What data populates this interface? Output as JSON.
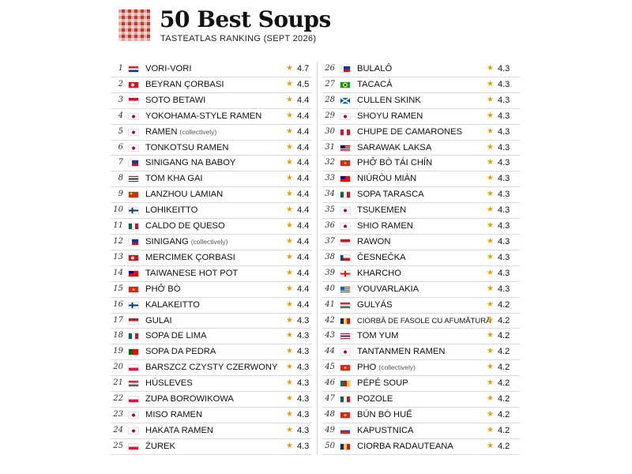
{
  "header": {
    "title": "50 Best Soups",
    "subtitle": "TASTEATLAS RANKING (SEPT 2026)"
  },
  "colors": {
    "star": "#e0a100",
    "logo": "#c0392b"
  },
  "left_column": [
    {
      "rank": "1",
      "name": "VORI-VORI",
      "note": "",
      "score": "4.7",
      "flag": "paraguay"
    },
    {
      "rank": "2",
      "name": "BEYRAN ÇORBASI",
      "note": "",
      "score": "4.5",
      "flag": "turkey"
    },
    {
      "rank": "3",
      "name": "SOTO BETAWI",
      "note": "",
      "score": "4.4",
      "flag": "indonesia"
    },
    {
      "rank": "4",
      "name": "YOKOHAMA-STYLE RAMEN",
      "note": "",
      "score": "4.4",
      "flag": "japan"
    },
    {
      "rank": "5",
      "name": "RAMEN",
      "note": "(collectively)",
      "score": "4.4",
      "flag": "japan"
    },
    {
      "rank": "6",
      "name": "TONKOTSU RAMEN",
      "note": "",
      "score": "4.4",
      "flag": "japan"
    },
    {
      "rank": "7",
      "name": "SINIGANG NA BABOY",
      "note": "",
      "score": "4.4",
      "flag": "philippines"
    },
    {
      "rank": "8",
      "name": "TOM KHA GAI",
      "note": "",
      "score": "4.4",
      "flag": "thailand"
    },
    {
      "rank": "9",
      "name": "LANZHOU LAMIAN",
      "note": "",
      "score": "4.4",
      "flag": "china"
    },
    {
      "rank": "10",
      "name": "LOHIKEITTO",
      "note": "",
      "score": "4.4",
      "flag": "finland"
    },
    {
      "rank": "11",
      "name": "CALDO DE QUESO",
      "note": "",
      "score": "4.4",
      "flag": "mexico"
    },
    {
      "rank": "12",
      "name": "SINIGANG",
      "note": "(collectively)",
      "score": "4.4",
      "flag": "philippines"
    },
    {
      "rank": "13",
      "name": "MERCIMEK ÇORBASI",
      "note": "",
      "score": "4.4",
      "flag": "turkey"
    },
    {
      "rank": "14",
      "name": "TAIWANESE HOT POT",
      "note": "",
      "score": "4.4",
      "flag": "taiwan"
    },
    {
      "rank": "15",
      "name": "PHỞ BÒ",
      "note": "",
      "score": "4.4",
      "flag": "vietnam"
    },
    {
      "rank": "16",
      "name": "KALAKEITTO",
      "note": "",
      "score": "4.4",
      "flag": "finland"
    },
    {
      "rank": "17",
      "name": "GULAI",
      "note": "",
      "score": "4.3",
      "flag": "indonesia"
    },
    {
      "rank": "18",
      "name": "SOPA DE LIMA",
      "note": "",
      "score": "4.3",
      "flag": "mexico"
    },
    {
      "rank": "19",
      "name": "SOPA DA PEDRA",
      "note": "",
      "score": "4.3",
      "flag": "portugal"
    },
    {
      "rank": "20",
      "name": "BARSZCZ CZYSTY CZERWONY",
      "note": "",
      "score": "4.3",
      "flag": "poland"
    },
    {
      "rank": "21",
      "name": "HÚSLEVES",
      "note": "",
      "score": "4.3",
      "flag": "hungary"
    },
    {
      "rank": "22",
      "name": "ZUPA BOROWIKOWA",
      "note": "",
      "score": "4.3",
      "flag": "poland"
    },
    {
      "rank": "23",
      "name": "MISO RAMEN",
      "note": "",
      "score": "4.3",
      "flag": "japan"
    },
    {
      "rank": "24",
      "name": "HAKATA RAMEN",
      "note": "",
      "score": "4.3",
      "flag": "japan"
    },
    {
      "rank": "25",
      "name": "ŻUREK",
      "note": "",
      "score": "4.3",
      "flag": "poland"
    }
  ],
  "right_column": [
    {
      "rank": "26",
      "name": "BULALÔ",
      "note": "",
      "score": "4.3",
      "flag": "philippines"
    },
    {
      "rank": "27",
      "name": "TACACÁ",
      "note": "",
      "score": "4.3",
      "flag": "brazil"
    },
    {
      "rank": "28",
      "name": "CULLEN SKINK",
      "note": "",
      "score": "4.3",
      "flag": "scotland"
    },
    {
      "rank": "29",
      "name": "SHOYU RAMEN",
      "note": "",
      "score": "4.3",
      "flag": "japan"
    },
    {
      "rank": "30",
      "name": "CHUPE DE CAMARONES",
      "note": "",
      "score": "4.3",
      "flag": "peru"
    },
    {
      "rank": "31",
      "name": "SARAWAK LAKSA",
      "note": "",
      "score": "4.3",
      "flag": "malaysia"
    },
    {
      "rank": "32",
      "name": "PHỞ BÒ TÁI CHÍN",
      "note": "",
      "score": "4.3",
      "flag": "vietnam"
    },
    {
      "rank": "33",
      "name": "NIÚRÒU MIÀN",
      "note": "",
      "score": "4.3",
      "flag": "taiwan"
    },
    {
      "rank": "34",
      "name": "SOPA TARASCA",
      "note": "",
      "score": "4.3",
      "flag": "mexico"
    },
    {
      "rank": "35",
      "name": "TSUKEMEN",
      "note": "",
      "score": "4.3",
      "flag": "japan"
    },
    {
      "rank": "36",
      "name": "SHIO RAMEN",
      "note": "",
      "score": "4.3",
      "flag": "japan"
    },
    {
      "rank": "37",
      "name": "RAWON",
      "note": "",
      "score": "4.3",
      "flag": "indonesia"
    },
    {
      "rank": "38",
      "name": "ČESNEČKA",
      "note": "",
      "score": "4.3",
      "flag": "czech"
    },
    {
      "rank": "39",
      "name": "KHARCHO",
      "note": "",
      "score": "4.3",
      "flag": "georgia"
    },
    {
      "rank": "40",
      "name": "YOUVARLAKIA",
      "note": "",
      "score": "4.3",
      "flag": "greece"
    },
    {
      "rank": "41",
      "name": "GULYÁS",
      "note": "",
      "score": "4.2",
      "flag": "hungary"
    },
    {
      "rank": "42",
      "name": "CIORBĂ DE FASOLE CU AFUMĂTURĂ",
      "note": "",
      "score": "4.2",
      "flag": "romania",
      "small": true
    },
    {
      "rank": "43",
      "name": "TOM YUM",
      "note": "",
      "score": "4.2",
      "flag": "thailand"
    },
    {
      "rank": "44",
      "name": "TANTANMEN RAMEN",
      "note": "",
      "score": "4.2",
      "flag": "japan"
    },
    {
      "rank": "45",
      "name": "PHO",
      "note": "(collectively)",
      "score": "4.2",
      "flag": "vietnam"
    },
    {
      "rank": "46",
      "name": "PÉPÉ SOUP",
      "note": "",
      "score": "4.2",
      "flag": "cameroon"
    },
    {
      "rank": "47",
      "name": "POZOLE",
      "note": "",
      "score": "4.2",
      "flag": "mexico"
    },
    {
      "rank": "48",
      "name": "BÚN BÒ HUẾ",
      "note": "",
      "score": "4.2",
      "flag": "vietnam"
    },
    {
      "rank": "49",
      "name": "KAPUSTNICA",
      "note": "",
      "score": "4.2",
      "flag": "slovakia"
    },
    {
      "rank": "50",
      "name": "CIORBA RADAUTEANA",
      "note": "",
      "score": "4.2",
      "flag": "romania"
    }
  ]
}
